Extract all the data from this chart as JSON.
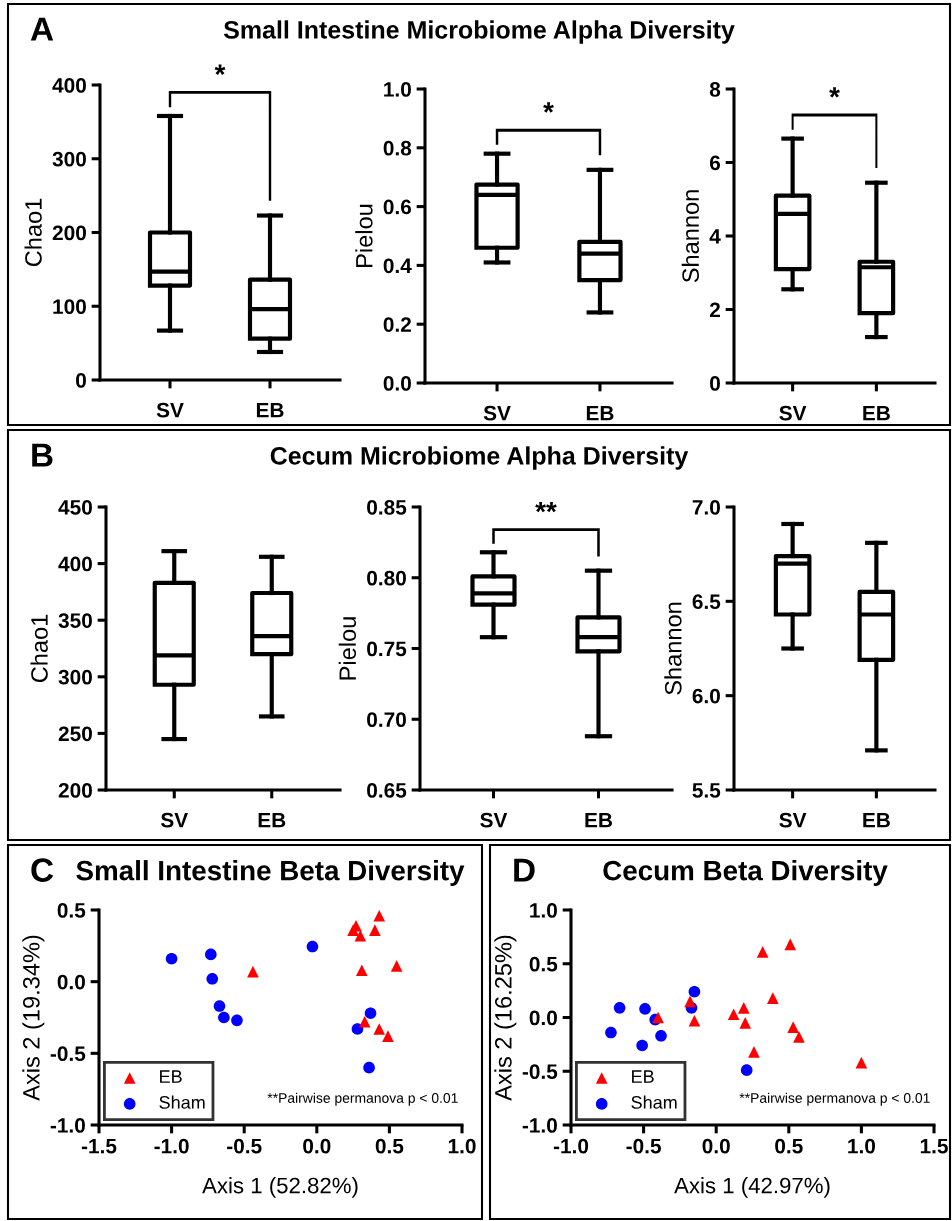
{
  "chart_data": [
    {
      "type": "box",
      "title": "A",
      "subtitle": "Small Intestine Microbiome Alpha Diversity",
      "ylabel": "Chao1",
      "categories": [
        "SV",
        "EB"
      ],
      "ylim": [
        0,
        400
      ],
      "yticks": [
        0,
        100,
        200,
        300,
        400
      ],
      "annotations": [
        "*"
      ],
      "boxes": [
        {
          "low": 67,
          "q1": 128,
          "median": 147,
          "q3": 200,
          "high": 358
        },
        {
          "low": 38,
          "q1": 56,
          "median": 96,
          "q3": 136,
          "high": 223
        }
      ]
    },
    {
      "type": "box",
      "ylabel": "Pielou",
      "categories": [
        "SV",
        "EB"
      ],
      "ylim": [
        0,
        1
      ],
      "yticks": [
        {
          "value": 0,
          "label": "0.0"
        },
        {
          "value": 0.2,
          "label": "0.2"
        },
        {
          "value": 0.4,
          "label": "0.4"
        },
        {
          "value": 0.6,
          "label": "0.6"
        },
        {
          "value": 0.8,
          "label": "0.8"
        },
        {
          "value": 1,
          "label": "1.0"
        }
      ],
      "annotations": [
        "*"
      ],
      "boxes": [
        {
          "low": 0.41,
          "q1": 0.46,
          "median": 0.64,
          "q3": 0.675,
          "high": 0.78
        },
        {
          "low": 0.24,
          "q1": 0.35,
          "median": 0.44,
          "q3": 0.48,
          "high": 0.725
        }
      ]
    },
    {
      "type": "box",
      "ylabel": "Shannon",
      "categories": [
        "SV",
        "EB"
      ],
      "ylim": [
        0,
        8
      ],
      "yticks": [
        0,
        2,
        4,
        6,
        8
      ],
      "annotations": [
        "*"
      ],
      "boxes": [
        {
          "low": 2.55,
          "q1": 3.1,
          "median": 4.6,
          "q3": 5.1,
          "high": 6.65
        },
        {
          "low": 1.25,
          "q1": 1.9,
          "median": 3.15,
          "q3": 3.3,
          "high": 5.45
        }
      ]
    },
    {
      "type": "box",
      "title": "B",
      "subtitle": "Cecum Microbiome Alpha Diversity",
      "ylabel": "Chao1",
      "categories": [
        "SV",
        "EB"
      ],
      "ylim": [
        200,
        450
      ],
      "yticks": [
        200,
        250,
        300,
        350,
        400,
        450
      ],
      "boxes": [
        {
          "low": 245,
          "q1": 293,
          "median": 319,
          "q3": 383,
          "high": 411
        },
        {
          "low": 265,
          "q1": 320,
          "median": 336,
          "q3": 374,
          "high": 406
        }
      ]
    },
    {
      "type": "box",
      "ylabel": "Pielou",
      "categories": [
        "SV",
        "EB"
      ],
      "ylim": [
        0.65,
        0.85
      ],
      "yticks": [
        {
          "value": 0.65,
          "label": "0.65"
        },
        {
          "value": 0.7,
          "label": "0.70"
        },
        {
          "value": 0.75,
          "label": "0.75"
        },
        {
          "value": 0.8,
          "label": "0.80"
        },
        {
          "value": 0.85,
          "label": "0.85"
        }
      ],
      "annotations": [
        "**"
      ],
      "boxes": [
        {
          "low": 0.758,
          "q1": 0.781,
          "median": 0.789,
          "q3": 0.801,
          "high": 0.818
        },
        {
          "low": 0.688,
          "q1": 0.748,
          "median": 0.758,
          "q3": 0.772,
          "high": 0.805
        }
      ]
    },
    {
      "type": "box",
      "ylabel": "Shannon",
      "categories": [
        "SV",
        "EB"
      ],
      "ylim": [
        5.5,
        7.0
      ],
      "yticks": [
        {
          "value": 5.5,
          "label": "5.5"
        },
        {
          "value": 6.0,
          "label": "6.0"
        },
        {
          "value": 6.5,
          "label": "6.5"
        },
        {
          "value": 7.0,
          "label": "7.0"
        }
      ],
      "boxes": [
        {
          "low": 6.25,
          "q1": 6.43,
          "median": 6.7,
          "q3": 6.74,
          "high": 6.91
        },
        {
          "low": 5.71,
          "q1": 6.19,
          "median": 6.43,
          "q3": 6.55,
          "high": 6.81
        }
      ]
    },
    {
      "type": "scatter",
      "title": "C",
      "subtitle": "Small Intestine Beta Diversity",
      "xlabel": "Axis 1 (52.82%)",
      "ylabel": "Axis 2 (19.34%)",
      "xlim": [
        -1.5,
        1.0
      ],
      "ylim": [
        -1.0,
        0.5
      ],
      "xticks": [
        {
          "value": -1.5,
          "label": "-1.5"
        },
        {
          "value": -1.0,
          "label": "-1.0"
        },
        {
          "value": -0.5,
          "label": "-0.5"
        },
        {
          "value": 0,
          "label": "0.0"
        },
        {
          "value": 0.5,
          "label": "0.5"
        },
        {
          "value": 1.0,
          "label": "1.0"
        }
      ],
      "yticks": [
        {
          "value": -1.0,
          "label": "-1.0"
        },
        {
          "value": -0.5,
          "label": "-0.5"
        },
        {
          "value": 0,
          "label": "0.0"
        },
        {
          "value": 0.5,
          "label": "0.5"
        }
      ],
      "legend": "bottom left",
      "annotations": [
        "**Pairwise permanova p < 0.01"
      ],
      "series": [
        {
          "name": "EB",
          "color": "#ff0000",
          "marker": "triangle",
          "x": [
            0.43,
            0.27,
            0.25,
            0.3,
            0.4,
            -0.44,
            0.31,
            0.55,
            0.33,
            0.43,
            0.49
          ],
          "values": [
            0.46,
            0.39,
            0.36,
            0.32,
            0.36,
            0.07,
            0.08,
            0.11,
            -0.28,
            -0.33,
            -0.38
          ]
        },
        {
          "name": "Sham",
          "color": "#0000ff",
          "marker": "circle",
          "x": [
            -1.0,
            -0.73,
            -0.72,
            -0.67,
            -0.64,
            -0.55,
            -0.03,
            0.37,
            0.28,
            0.36
          ],
          "values": [
            0.16,
            0.19,
            0.02,
            -0.17,
            -0.25,
            -0.27,
            0.245,
            -0.22,
            -0.33,
            -0.6
          ]
        }
      ]
    },
    {
      "type": "scatter",
      "title": "D",
      "subtitle": "Cecum Beta Diversity",
      "xlabel": "Axis 1 (42.97%)",
      "ylabel": "Axis 2 (16.25%)",
      "xlim": [
        -1.0,
        1.5
      ],
      "ylim": [
        -1.0,
        1.0
      ],
      "xticks": [
        {
          "value": -1.0,
          "label": "-1.0"
        },
        {
          "value": -0.5,
          "label": "-0.5"
        },
        {
          "value": 0,
          "label": "0.0"
        },
        {
          "value": 0.5,
          "label": "0.5"
        },
        {
          "value": 1.0,
          "label": "1.0"
        },
        {
          "value": 1.5,
          "label": "1.5"
        }
      ],
      "yticks": [
        {
          "value": -1.0,
          "label": "-1.0"
        },
        {
          "value": -0.5,
          "label": "-0.5"
        },
        {
          "value": 0,
          "label": "0.0"
        },
        {
          "value": 0.5,
          "label": "0.5"
        },
        {
          "value": 1.0,
          "label": "1.0"
        }
      ],
      "legend": "bottom left",
      "annotations": [
        "**Pairwise permanova p < 0.01"
      ],
      "series": [
        {
          "name": "EB",
          "color": "#ff0000",
          "marker": "triangle",
          "x": [
            -0.4,
            -0.18,
            -0.15,
            0.12,
            0.19,
            0.2,
            0.32,
            0.51,
            0.39,
            0.53,
            0.57,
            0.26,
            1.0
          ],
          "values": [
            0.0,
            0.15,
            -0.03,
            0.03,
            0.09,
            -0.05,
            0.61,
            0.68,
            0.18,
            -0.09,
            -0.18,
            -0.32,
            -0.42
          ]
        },
        {
          "name": "Sham",
          "color": "#0000ff",
          "marker": "circle",
          "x": [
            -0.665,
            -0.725,
            -0.49,
            -0.42,
            -0.38,
            -0.51,
            -0.17,
            -0.15,
            0.21
          ],
          "values": [
            0.09,
            -0.14,
            0.08,
            -0.02,
            -0.17,
            -0.26,
            0.09,
            0.24,
            -0.49
          ]
        }
      ]
    }
  ]
}
